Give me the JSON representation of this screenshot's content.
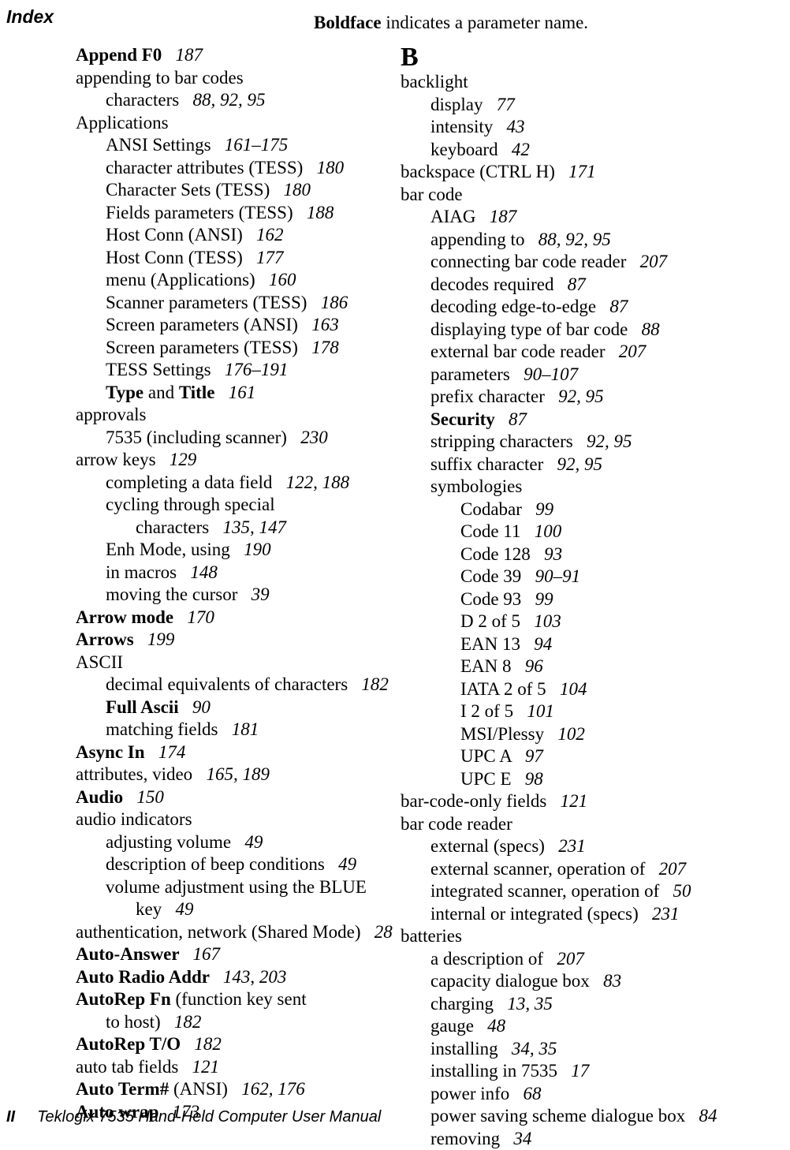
{
  "header": {
    "index_label": "Index",
    "boldface_note_prefix": "Boldface",
    "boldface_note_rest": " indicates a parameter name."
  },
  "left": [
    {
      "indent": 0,
      "runs": [
        {
          "t": "Append F0   ",
          "b": true
        },
        {
          "t": "187",
          "it": true
        }
      ]
    },
    {
      "indent": 0,
      "runs": [
        {
          "t": "appending to bar codes"
        }
      ]
    },
    {
      "indent": 1,
      "runs": [
        {
          "t": "characters   "
        },
        {
          "t": "88, 92, 95",
          "it": true
        }
      ]
    },
    {
      "indent": 0,
      "runs": [
        {
          "t": "Applications"
        }
      ]
    },
    {
      "indent": 1,
      "runs": [
        {
          "t": "ANSI Settings   "
        },
        {
          "t": "161–175",
          "it": true
        }
      ]
    },
    {
      "indent": 1,
      "runs": [
        {
          "t": "character attributes (TESS)   "
        },
        {
          "t": "180",
          "it": true
        }
      ]
    },
    {
      "indent": 1,
      "runs": [
        {
          "t": "Character Sets (TESS)   "
        },
        {
          "t": "180",
          "it": true
        }
      ]
    },
    {
      "indent": 1,
      "runs": [
        {
          "t": "Fields parameters (TESS)   "
        },
        {
          "t": "188",
          "it": true
        }
      ]
    },
    {
      "indent": 1,
      "runs": [
        {
          "t": "Host Conn (ANSI)   "
        },
        {
          "t": "162",
          "it": true
        }
      ]
    },
    {
      "indent": 1,
      "runs": [
        {
          "t": "Host Conn (TESS)   "
        },
        {
          "t": "177",
          "it": true
        }
      ]
    },
    {
      "indent": 1,
      "runs": [
        {
          "t": "menu (Applications)   "
        },
        {
          "t": "160",
          "it": true
        }
      ]
    },
    {
      "indent": 1,
      "runs": [
        {
          "t": "Scanner parameters (TESS)   "
        },
        {
          "t": "186",
          "it": true
        }
      ]
    },
    {
      "indent": 1,
      "runs": [
        {
          "t": "Screen parameters (ANSI)   "
        },
        {
          "t": "163",
          "it": true
        }
      ]
    },
    {
      "indent": 1,
      "runs": [
        {
          "t": "Screen parameters (TESS)   "
        },
        {
          "t": "178",
          "it": true
        }
      ]
    },
    {
      "indent": 1,
      "runs": [
        {
          "t": "TESS Settings   "
        },
        {
          "t": "176–191",
          "it": true
        }
      ]
    },
    {
      "indent": 1,
      "runs": [
        {
          "t": "Type",
          "b": true
        },
        {
          "t": " and "
        },
        {
          "t": "Title   ",
          "b": true
        },
        {
          "t": "161",
          "it": true
        }
      ]
    },
    {
      "indent": 0,
      "runs": [
        {
          "t": "approvals"
        }
      ]
    },
    {
      "indent": 1,
      "runs": [
        {
          "t": "7535 (including scanner)   "
        },
        {
          "t": "230",
          "it": true
        }
      ]
    },
    {
      "indent": 0,
      "runs": [
        {
          "t": "arrow keys   "
        },
        {
          "t": "129",
          "it": true
        }
      ]
    },
    {
      "indent": 1,
      "runs": [
        {
          "t": "completing a data field   "
        },
        {
          "t": "122, 188",
          "it": true
        }
      ]
    },
    {
      "indent": 1,
      "runs": [
        {
          "t": "cycling through special"
        }
      ]
    },
    {
      "indent": 2,
      "runs": [
        {
          "t": "characters   "
        },
        {
          "t": "135, 147",
          "it": true
        }
      ]
    },
    {
      "indent": 1,
      "runs": [
        {
          "t": "Enh Mode, using   "
        },
        {
          "t": "190",
          "it": true
        }
      ]
    },
    {
      "indent": 1,
      "runs": [
        {
          "t": "in macros   "
        },
        {
          "t": "148",
          "it": true
        }
      ]
    },
    {
      "indent": 1,
      "runs": [
        {
          "t": "moving the cursor   "
        },
        {
          "t": "39",
          "it": true
        }
      ]
    },
    {
      "indent": 0,
      "runs": [
        {
          "t": "Arrow mode   ",
          "b": true
        },
        {
          "t": "170",
          "it": true
        }
      ]
    },
    {
      "indent": 0,
      "runs": [
        {
          "t": "Arrows   ",
          "b": true
        },
        {
          "t": "199",
          "it": true
        }
      ]
    },
    {
      "indent": 0,
      "runs": [
        {
          "t": "ASCII"
        }
      ]
    },
    {
      "indent": 1,
      "runs": [
        {
          "t": "decimal equivalents of characters   "
        },
        {
          "t": "182",
          "it": true
        }
      ]
    },
    {
      "indent": 1,
      "runs": [
        {
          "t": "Full Ascii   ",
          "b": true
        },
        {
          "t": "90",
          "it": true
        }
      ]
    },
    {
      "indent": 1,
      "runs": [
        {
          "t": "matching fields   "
        },
        {
          "t": "181",
          "it": true
        }
      ]
    },
    {
      "indent": 0,
      "runs": [
        {
          "t": "Async In   ",
          "b": true
        },
        {
          "t": "174",
          "it": true
        }
      ]
    },
    {
      "indent": 0,
      "runs": [
        {
          "t": "attributes, video   "
        },
        {
          "t": "165, 189",
          "it": true
        }
      ]
    },
    {
      "indent": 0,
      "runs": [
        {
          "t": "Audio   ",
          "b": true
        },
        {
          "t": "150",
          "it": true
        }
      ]
    },
    {
      "indent": 0,
      "runs": [
        {
          "t": "audio indicators"
        }
      ]
    },
    {
      "indent": 1,
      "runs": [
        {
          "t": "adjusting volume   "
        },
        {
          "t": "49",
          "it": true
        }
      ]
    },
    {
      "indent": 1,
      "runs": [
        {
          "t": "description of beep conditions   "
        },
        {
          "t": "49",
          "it": true
        }
      ]
    },
    {
      "indent": 1,
      "runs": [
        {
          "t": "volume adjustment using the BLUE"
        }
      ]
    },
    {
      "indent": 2,
      "runs": [
        {
          "t": "key   "
        },
        {
          "t": "49",
          "it": true
        }
      ]
    },
    {
      "indent": 0,
      "runs": [
        {
          "t": "authentication, network (Shared Mode)   "
        },
        {
          "t": "28",
          "it": true
        }
      ]
    },
    {
      "indent": 0,
      "runs": [
        {
          "t": "Auto-Answer   ",
          "b": true
        },
        {
          "t": "167",
          "it": true
        }
      ]
    },
    {
      "indent": 0,
      "runs": [
        {
          "t": "Auto Radio Addr   ",
          "b": true
        },
        {
          "t": "143, 203",
          "it": true
        }
      ]
    },
    {
      "indent": 0,
      "runs": [
        {
          "t": "AutoRep Fn",
          "b": true
        },
        {
          "t": " (function key sent"
        }
      ]
    },
    {
      "indent": 1,
      "runs": [
        {
          "t": "to host)   "
        },
        {
          "t": "182",
          "it": true
        }
      ]
    },
    {
      "indent": 0,
      "runs": [
        {
          "t": "AutoRep T/O   ",
          "b": true
        },
        {
          "t": "182",
          "it": true
        }
      ]
    },
    {
      "indent": 0,
      "runs": [
        {
          "t": "auto tab fields   "
        },
        {
          "t": "121",
          "it": true
        }
      ]
    },
    {
      "indent": 0,
      "runs": [
        {
          "t": "Auto Term#",
          "b": true
        },
        {
          "t": " (ANSI)   "
        },
        {
          "t": "162, 176",
          "it": true
        }
      ]
    },
    {
      "indent": 0,
      "runs": [
        {
          "t": "Auto wrap   ",
          "b": true
        },
        {
          "t": "173",
          "it": true
        }
      ]
    }
  ],
  "right_letter": "B",
  "right": [
    {
      "indent": 0,
      "runs": [
        {
          "t": "backlight"
        }
      ]
    },
    {
      "indent": 1,
      "runs": [
        {
          "t": "display   "
        },
        {
          "t": "77",
          "it": true
        }
      ]
    },
    {
      "indent": 1,
      "runs": [
        {
          "t": "intensity   "
        },
        {
          "t": "43",
          "it": true
        }
      ]
    },
    {
      "indent": 1,
      "runs": [
        {
          "t": "keyboard   "
        },
        {
          "t": "42",
          "it": true
        }
      ]
    },
    {
      "indent": 0,
      "runs": [
        {
          "t": "backspace (CTRL H)   "
        },
        {
          "t": "171",
          "it": true
        }
      ]
    },
    {
      "indent": 0,
      "runs": [
        {
          "t": "bar code"
        }
      ]
    },
    {
      "indent": 1,
      "runs": [
        {
          "t": "AIAG   "
        },
        {
          "t": "187",
          "it": true
        }
      ]
    },
    {
      "indent": 1,
      "runs": [
        {
          "t": "appending to   "
        },
        {
          "t": "88, 92, 95",
          "it": true
        }
      ]
    },
    {
      "indent": 1,
      "runs": [
        {
          "t": "connecting bar code reader   "
        },
        {
          "t": "207",
          "it": true
        }
      ]
    },
    {
      "indent": 1,
      "runs": [
        {
          "t": "decodes required   "
        },
        {
          "t": "87",
          "it": true
        }
      ]
    },
    {
      "indent": 1,
      "runs": [
        {
          "t": "decoding edge-to-edge   "
        },
        {
          "t": "87",
          "it": true
        }
      ]
    },
    {
      "indent": 1,
      "runs": [
        {
          "t": "displaying type of bar code   "
        },
        {
          "t": "88",
          "it": true
        }
      ]
    },
    {
      "indent": 1,
      "runs": [
        {
          "t": "external bar code reader   "
        },
        {
          "t": "207",
          "it": true
        }
      ]
    },
    {
      "indent": 1,
      "runs": [
        {
          "t": "parameters   "
        },
        {
          "t": "90–107",
          "it": true
        }
      ]
    },
    {
      "indent": 1,
      "runs": [
        {
          "t": "prefix character   "
        },
        {
          "t": "92, 95",
          "it": true
        }
      ]
    },
    {
      "indent": 1,
      "runs": [
        {
          "t": "Security   ",
          "b": true
        },
        {
          "t": "87",
          "it": true
        }
      ]
    },
    {
      "indent": 1,
      "runs": [
        {
          "t": "stripping characters   "
        },
        {
          "t": "92, 95",
          "it": true
        }
      ]
    },
    {
      "indent": 1,
      "runs": [
        {
          "t": "suffix character   "
        },
        {
          "t": "92, 95",
          "it": true
        }
      ]
    },
    {
      "indent": 1,
      "runs": [
        {
          "t": "symbologies"
        }
      ]
    },
    {
      "indent": 2,
      "runs": [
        {
          "t": "Codabar   "
        },
        {
          "t": "99",
          "it": true
        }
      ]
    },
    {
      "indent": 2,
      "runs": [
        {
          "t": "Code 11   "
        },
        {
          "t": "100",
          "it": true
        }
      ]
    },
    {
      "indent": 2,
      "runs": [
        {
          "t": "Code 128   "
        },
        {
          "t": "93",
          "it": true
        }
      ]
    },
    {
      "indent": 2,
      "runs": [
        {
          "t": "Code 39   "
        },
        {
          "t": "90–91",
          "it": true
        }
      ]
    },
    {
      "indent": 2,
      "runs": [
        {
          "t": "Code 93   "
        },
        {
          "t": "99",
          "it": true
        }
      ]
    },
    {
      "indent": 2,
      "runs": [
        {
          "t": "D 2 of 5   "
        },
        {
          "t": "103",
          "it": true
        }
      ]
    },
    {
      "indent": 2,
      "runs": [
        {
          "t": "EAN 13   "
        },
        {
          "t": "94",
          "it": true
        }
      ]
    },
    {
      "indent": 2,
      "runs": [
        {
          "t": "EAN 8   "
        },
        {
          "t": "96",
          "it": true
        }
      ]
    },
    {
      "indent": 2,
      "runs": [
        {
          "t": "IATA 2 of 5   "
        },
        {
          "t": "104",
          "it": true
        }
      ]
    },
    {
      "indent": 2,
      "runs": [
        {
          "t": "I 2 of 5   "
        },
        {
          "t": "101",
          "it": true
        }
      ]
    },
    {
      "indent": 2,
      "runs": [
        {
          "t": "MSI/Plessy   "
        },
        {
          "t": "102",
          "it": true
        }
      ]
    },
    {
      "indent": 2,
      "runs": [
        {
          "t": "UPC A   "
        },
        {
          "t": "97",
          "it": true
        }
      ]
    },
    {
      "indent": 2,
      "runs": [
        {
          "t": "UPC E   "
        },
        {
          "t": "98",
          "it": true
        }
      ]
    },
    {
      "indent": 0,
      "runs": [
        {
          "t": "bar-code-only fields   "
        },
        {
          "t": "121",
          "it": true
        }
      ]
    },
    {
      "indent": 0,
      "runs": [
        {
          "t": "bar code reader"
        }
      ]
    },
    {
      "indent": 1,
      "runs": [
        {
          "t": "external (specs)   "
        },
        {
          "t": "231",
          "it": true
        }
      ]
    },
    {
      "indent": 1,
      "runs": [
        {
          "t": "external scanner, operation of   "
        },
        {
          "t": "207",
          "it": true
        }
      ]
    },
    {
      "indent": 1,
      "runs": [
        {
          "t": "integrated scanner, operation of   "
        },
        {
          "t": "50",
          "it": true
        }
      ]
    },
    {
      "indent": 1,
      "runs": [
        {
          "t": "internal or integrated (specs)   "
        },
        {
          "t": "231",
          "it": true
        }
      ]
    },
    {
      "indent": 0,
      "runs": [
        {
          "t": "batteries"
        }
      ]
    },
    {
      "indent": 1,
      "runs": [
        {
          "t": "a description of   "
        },
        {
          "t": "207",
          "it": true
        }
      ]
    },
    {
      "indent": 1,
      "runs": [
        {
          "t": "capacity dialogue box   "
        },
        {
          "t": "83",
          "it": true
        }
      ]
    },
    {
      "indent": 1,
      "runs": [
        {
          "t": "charging   "
        },
        {
          "t": "13, 35",
          "it": true
        }
      ]
    },
    {
      "indent": 1,
      "runs": [
        {
          "t": "gauge   "
        },
        {
          "t": "48",
          "it": true
        }
      ]
    },
    {
      "indent": 1,
      "runs": [
        {
          "t": "installing   "
        },
        {
          "t": "34, 35",
          "it": true
        }
      ]
    },
    {
      "indent": 1,
      "runs": [
        {
          "t": "installing in 7535   "
        },
        {
          "t": "17",
          "it": true
        }
      ]
    },
    {
      "indent": 1,
      "runs": [
        {
          "t": "power info   "
        },
        {
          "t": "68",
          "it": true
        }
      ]
    },
    {
      "indent": 1,
      "runs": [
        {
          "t": "power saving scheme dialogue box   "
        },
        {
          "t": "84",
          "it": true
        }
      ]
    },
    {
      "indent": 1,
      "runs": [
        {
          "t": "removing   "
        },
        {
          "t": "34",
          "it": true
        }
      ]
    }
  ],
  "footer": {
    "page_number": "II",
    "title": "Teklogix 7535 Hand-Held Computer User Manual"
  }
}
